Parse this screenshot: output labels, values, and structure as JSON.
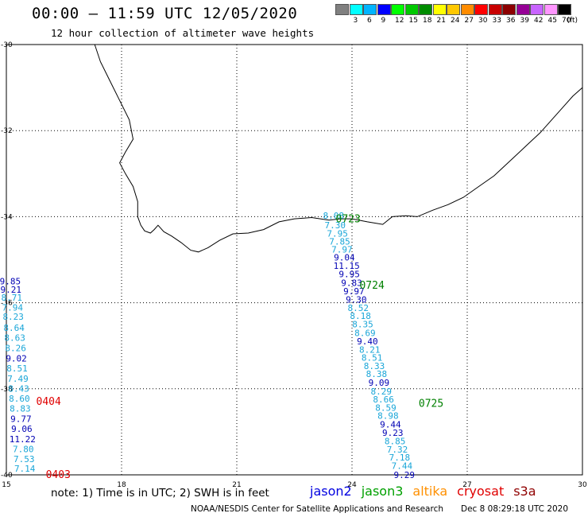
{
  "header": {
    "title": "00:00 – 11:59 UTC 12/05/2020",
    "subtitle": "12 hour collection of altimeter wave heights"
  },
  "legend": {
    "unit": "(ft)",
    "bins": [
      {
        "label": "",
        "color": "#808080"
      },
      {
        "label": "3",
        "color": "#00ffff"
      },
      {
        "label": "6",
        "color": "#00b4ff"
      },
      {
        "label": "9",
        "color": "#0000ff"
      },
      {
        "label": "12",
        "color": "#00ff00"
      },
      {
        "label": "15",
        "color": "#00c800"
      },
      {
        "label": "18",
        "color": "#008c00"
      },
      {
        "label": "21",
        "color": "#ffff00"
      },
      {
        "label": "24",
        "color": "#ffc800"
      },
      {
        "label": "27",
        "color": "#ff8c00"
      },
      {
        "label": "30",
        "color": "#ff0000"
      },
      {
        "label": "33",
        "color": "#c80000"
      },
      {
        "label": "36",
        "color": "#8c0000"
      },
      {
        "label": "39",
        "color": "#960096"
      },
      {
        "label": "42",
        "color": "#c864ff"
      },
      {
        "label": "45",
        "color": "#ff96ff"
      },
      {
        "label": "70",
        "color": "#000000"
      }
    ]
  },
  "map": {
    "lon_range": [
      15,
      30
    ],
    "lat_range": [
      -40,
      -30
    ],
    "x_ticks": [
      "15",
      "18",
      "21",
      "24",
      "27",
      "30"
    ],
    "y_ticks": [
      "-30",
      "-32",
      "-34",
      "-36",
      "-38",
      "-40"
    ],
    "colors": {
      "light": "#1aa6d8",
      "dark": "#0000b4",
      "green": "#008000",
      "red": "#e00000"
    },
    "tracks": [
      {
        "name": "east-track",
        "points": [
          {
            "lon": 23.52,
            "lat": -34.05,
            "value": "8.08",
            "band": "light"
          },
          {
            "lon": 23.56,
            "lat": -34.27,
            "value": "7.30",
            "band": "light"
          },
          {
            "lon": 23.62,
            "lat": -34.46,
            "value": "7.95",
            "band": "light"
          },
          {
            "lon": 23.68,
            "lat": -34.65,
            "value": "7.85",
            "band": "light"
          },
          {
            "lon": 23.74,
            "lat": -34.83,
            "value": "7.97",
            "band": "light"
          },
          {
            "lon": 23.8,
            "lat": -35.02,
            "value": "9.04",
            "band": "dark"
          },
          {
            "lon": 23.86,
            "lat": -35.21,
            "value": "11.15",
            "band": "dark"
          },
          {
            "lon": 23.93,
            "lat": -35.41,
            "value": "9.95",
            "band": "dark"
          },
          {
            "lon": 23.99,
            "lat": -35.61,
            "value": "9.83",
            "band": "dark"
          },
          {
            "lon": 24.05,
            "lat": -35.8,
            "value": "9.97",
            "band": "dark"
          },
          {
            "lon": 24.11,
            "lat": -36.0,
            "value": "9.30",
            "band": "dark"
          },
          {
            "lon": 24.16,
            "lat": -36.19,
            "value": "8.52",
            "band": "light"
          },
          {
            "lon": 24.22,
            "lat": -36.38,
            "value": "8.18",
            "band": "light"
          },
          {
            "lon": 24.28,
            "lat": -36.57,
            "value": "8.35",
            "band": "light"
          },
          {
            "lon": 24.34,
            "lat": -36.77,
            "value": "8.69",
            "band": "light"
          },
          {
            "lon": 24.4,
            "lat": -36.97,
            "value": "9.40",
            "band": "dark"
          },
          {
            "lon": 24.46,
            "lat": -37.16,
            "value": "8.21",
            "band": "light"
          },
          {
            "lon": 24.52,
            "lat": -37.35,
            "value": "8.51",
            "band": "light"
          },
          {
            "lon": 24.58,
            "lat": -37.54,
            "value": "8.33",
            "band": "light"
          },
          {
            "lon": 24.64,
            "lat": -37.73,
            "value": "8.38",
            "band": "light"
          },
          {
            "lon": 24.7,
            "lat": -37.93,
            "value": "9.09",
            "band": "dark"
          },
          {
            "lon": 24.76,
            "lat": -38.13,
            "value": "8.29",
            "band": "light"
          },
          {
            "lon": 24.82,
            "lat": -38.32,
            "value": "8.66",
            "band": "light"
          },
          {
            "lon": 24.88,
            "lat": -38.51,
            "value": "8.59",
            "band": "light"
          },
          {
            "lon": 24.94,
            "lat": -38.7,
            "value": "8.98",
            "band": "light"
          },
          {
            "lon": 25.0,
            "lat": -38.9,
            "value": "9.44",
            "band": "dark"
          },
          {
            "lon": 25.06,
            "lat": -39.09,
            "value": "9.23",
            "band": "dark"
          },
          {
            "lon": 25.12,
            "lat": -39.29,
            "value": "8.85",
            "band": "light"
          },
          {
            "lon": 25.18,
            "lat": -39.48,
            "value": "7.32",
            "band": "light"
          },
          {
            "lon": 25.24,
            "lat": -39.67,
            "value": "7.18",
            "band": "light"
          },
          {
            "lon": 25.3,
            "lat": -39.86,
            "value": "7.44",
            "band": "light"
          },
          {
            "lon": 25.36,
            "lat": -40.07,
            "value": "9.29",
            "band": "dark"
          }
        ]
      },
      {
        "name": "west-track",
        "points": [
          {
            "lon": 15.1,
            "lat": -35.57,
            "value": "9.85",
            "band": "dark"
          },
          {
            "lon": 15.12,
            "lat": -35.77,
            "value": "9.21",
            "band": "dark"
          },
          {
            "lon": 15.14,
            "lat": -35.95,
            "value": "8.71",
            "band": "light"
          },
          {
            "lon": 15.16,
            "lat": -36.18,
            "value": "7.94",
            "band": "light"
          },
          {
            "lon": 15.18,
            "lat": -36.4,
            "value": "8.23",
            "band": "light"
          },
          {
            "lon": 15.2,
            "lat": -36.65,
            "value": "8.64",
            "band": "light"
          },
          {
            "lon": 15.22,
            "lat": -36.89,
            "value": "8.63",
            "band": "light"
          },
          {
            "lon": 15.24,
            "lat": -37.13,
            "value": "8.26",
            "band": "light"
          },
          {
            "lon": 15.26,
            "lat": -37.37,
            "value": "9.02",
            "band": "dark"
          },
          {
            "lon": 15.28,
            "lat": -37.6,
            "value": "8.51",
            "band": "light"
          },
          {
            "lon": 15.3,
            "lat": -37.84,
            "value": "7.49",
            "band": "light"
          },
          {
            "lon": 15.32,
            "lat": -38.07,
            "value": "8.43",
            "band": "light"
          },
          {
            "lon": 15.34,
            "lat": -38.3,
            "value": "8.60",
            "band": "light"
          },
          {
            "lon": 15.36,
            "lat": -38.53,
            "value": "8.83",
            "band": "light"
          },
          {
            "lon": 15.38,
            "lat": -38.77,
            "value": "9.77",
            "band": "dark"
          },
          {
            "lon": 15.4,
            "lat": -39.0,
            "value": "9.06",
            "band": "dark"
          },
          {
            "lon": 15.42,
            "lat": -39.24,
            "value": "11.22",
            "band": "dark"
          },
          {
            "lon": 15.44,
            "lat": -39.47,
            "value": "7.80",
            "band": "light"
          },
          {
            "lon": 15.46,
            "lat": -39.7,
            "value": "7.53",
            "band": "light"
          },
          {
            "lon": 15.48,
            "lat": -39.93,
            "value": "7.14",
            "band": "light"
          }
        ]
      }
    ],
    "time_labels": [
      {
        "lon": 23.9,
        "lat": -34.06,
        "text": "0723",
        "band": "green"
      },
      {
        "lon": 24.52,
        "lat": -35.6,
        "text": "0724",
        "band": "green"
      },
      {
        "lon": 26.06,
        "lat": -38.35,
        "text": "0725",
        "band": "green"
      },
      {
        "lon": 16.1,
        "lat": -38.3,
        "text": "0404",
        "band": "red"
      },
      {
        "lon": 16.35,
        "lat": -40.0,
        "text": "0403",
        "band": "red"
      }
    ],
    "coastline": [
      [
        18.42,
        -34.0
      ],
      [
        18.5,
        -34.2
      ],
      [
        18.6,
        -34.33
      ],
      [
        18.75,
        -34.38
      ],
      [
        18.85,
        -34.3
      ],
      [
        18.95,
        -34.2
      ],
      [
        19.1,
        -34.35
      ],
      [
        19.3,
        -34.45
      ],
      [
        19.55,
        -34.6
      ],
      [
        19.8,
        -34.78
      ],
      [
        20.0,
        -34.82
      ],
      [
        20.25,
        -34.72
      ],
      [
        20.55,
        -34.55
      ],
      [
        20.9,
        -34.4
      ],
      [
        21.3,
        -34.38
      ],
      [
        21.7,
        -34.3
      ],
      [
        22.1,
        -34.12
      ],
      [
        22.5,
        -34.05
      ],
      [
        22.95,
        -34.02
      ],
      [
        23.4,
        -34.08
      ],
      [
        23.7,
        -34.05
      ],
      [
        24.0,
        -34.05
      ],
      [
        24.4,
        -34.12
      ],
      [
        24.8,
        -34.18
      ],
      [
        25.05,
        -34.0
      ],
      [
        25.4,
        -33.98
      ],
      [
        25.7,
        -34.0
      ],
      [
        26.1,
        -33.85
      ],
      [
        26.5,
        -33.72
      ],
      [
        26.9,
        -33.55
      ],
      [
        27.3,
        -33.3
      ],
      [
        27.7,
        -33.05
      ],
      [
        28.0,
        -32.8
      ],
      [
        28.3,
        -32.55
      ],
      [
        28.6,
        -32.3
      ],
      [
        28.9,
        -32.05
      ],
      [
        29.2,
        -31.75
      ],
      [
        29.5,
        -31.45
      ],
      [
        29.75,
        -31.2
      ],
      [
        30.0,
        -31.0
      ]
    ],
    "west_coastline": [
      [
        17.3,
        -30.0
      ],
      [
        17.45,
        -30.4
      ],
      [
        17.7,
        -30.85
      ],
      [
        17.95,
        -31.3
      ],
      [
        18.2,
        -31.75
      ],
      [
        18.3,
        -32.2
      ],
      [
        18.1,
        -32.5
      ],
      [
        17.95,
        -32.75
      ],
      [
        18.1,
        -33.0
      ],
      [
        18.3,
        -33.3
      ],
      [
        18.42,
        -33.65
      ],
      [
        18.42,
        -34.0
      ]
    ]
  },
  "footer": {
    "note": "note: 1) Time is in UTC; 2) SWH is in feet",
    "satellites": [
      {
        "name": "jason2",
        "color": "#0000e0"
      },
      {
        "name": "jason3",
        "color": "#00a000"
      },
      {
        "name": "altika",
        "color": "#ff9000"
      },
      {
        "name": "cryosat",
        "color": "#e00000"
      },
      {
        "name": "s3a",
        "color": "#900000"
      }
    ],
    "credit": "NOAA/NESDIS Center for Satellite Applications and Research",
    "generated": "Dec  8 08:29:18 UTC 2020"
  }
}
